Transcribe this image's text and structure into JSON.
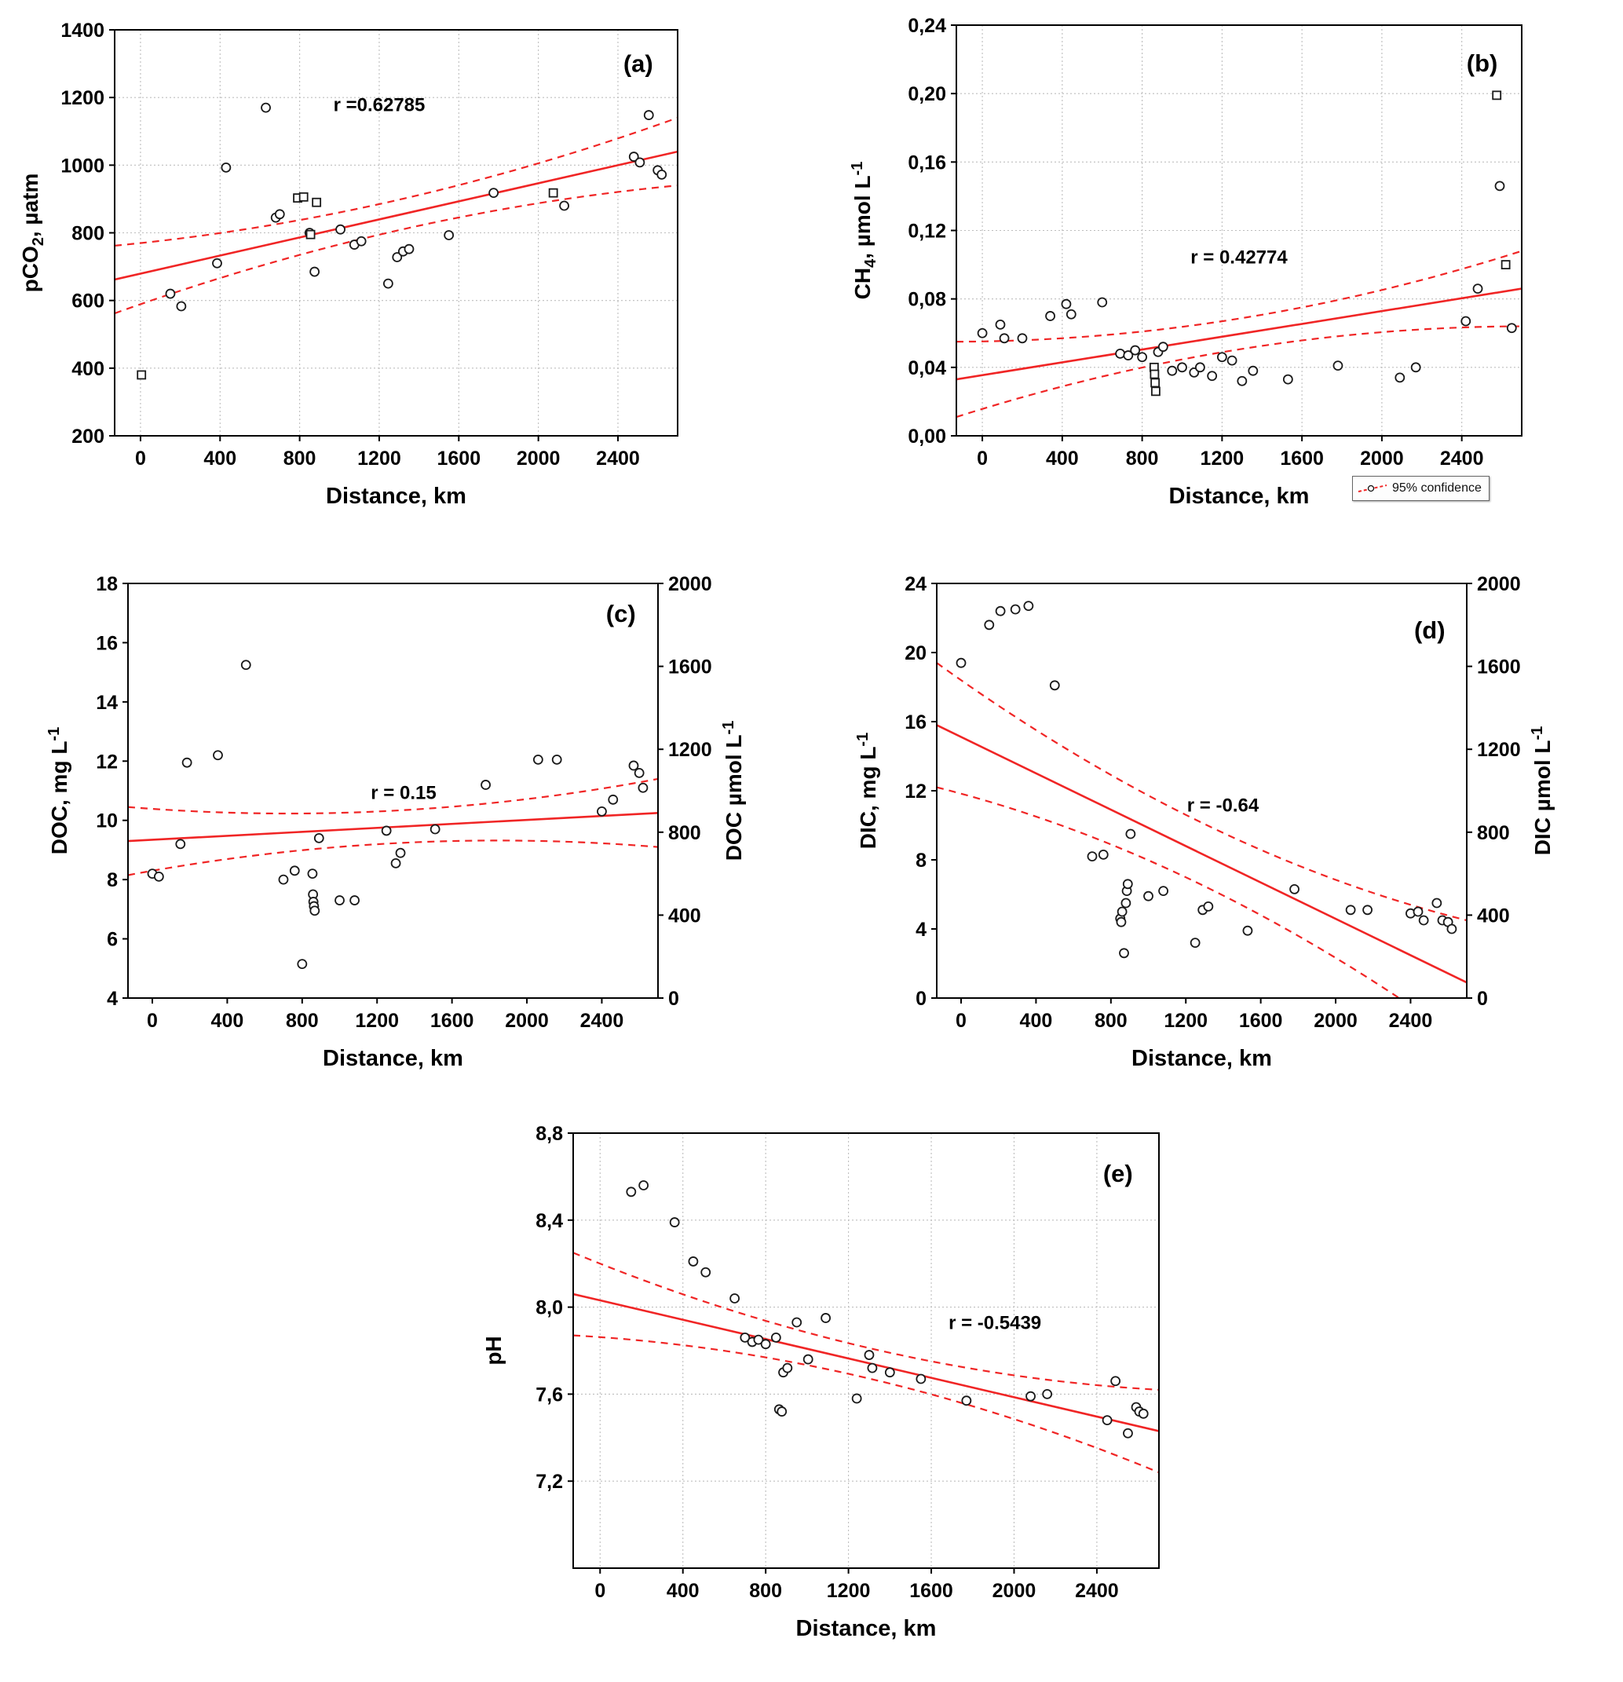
{
  "figure": {
    "description": "Five scatter plots of river water parameters versus distance with linear regressions and 95% confidence bands",
    "panels": [
      "(a)",
      "(b)",
      "(c)",
      "(d)",
      "(e)"
    ]
  },
  "colors": {
    "regression_red": "#f02525",
    "grid": "#bdbdbd",
    "marker": "#1a1a1a",
    "axis": "#000000"
  },
  "chart_data": [
    {
      "id": "a",
      "type": "scatter",
      "panel_label": "(a)",
      "panel_pos": [
        0.93,
        0.08
      ],
      "r_label": "r =0.62785",
      "r_label_pos": [
        0.47,
        0.2
      ],
      "xlabel": "Distance, km",
      "ylabel_segments": [
        {
          "t": "pCO"
        },
        {
          "t": "2",
          "sub": true
        },
        {
          "t": ", µatm"
        }
      ],
      "x_range": [
        -130,
        2700
      ],
      "y_range": [
        200,
        1400
      ],
      "x_ticks": [
        0,
        400,
        800,
        1200,
        1600,
        2000,
        2400
      ],
      "x_tick_labels": [
        "0",
        "400",
        "800",
        "1200",
        "1600",
        "2000",
        "2400"
      ],
      "y_ticks": [
        200,
        400,
        600,
        800,
        1000,
        1200,
        1400
      ],
      "y_tick_labels": [
        "200",
        "400",
        "600",
        "800",
        "1000",
        "1200",
        "1400"
      ],
      "grid": true,
      "points": [
        [
          150,
          620
        ],
        [
          205,
          583
        ],
        [
          385,
          710
        ],
        [
          430,
          993
        ],
        [
          630,
          1170
        ],
        [
          680,
          845
        ],
        [
          700,
          855
        ],
        [
          850,
          800
        ],
        [
          875,
          685
        ],
        [
          1005,
          810
        ],
        [
          1075,
          765
        ],
        [
          1110,
          775
        ],
        [
          1245,
          650
        ],
        [
          1290,
          728
        ],
        [
          1320,
          745
        ],
        [
          1350,
          752
        ],
        [
          1550,
          793
        ],
        [
          1775,
          918
        ],
        [
          2130,
          880
        ],
        [
          2480,
          1025
        ],
        [
          2510,
          1008
        ],
        [
          2555,
          1148
        ],
        [
          2600,
          985
        ],
        [
          2620,
          972
        ]
      ],
      "square_points": [
        [
          5,
          380
        ],
        [
          790,
          903
        ],
        [
          820,
          906
        ],
        [
          855,
          795
        ],
        [
          885,
          890
        ],
        [
          2075,
          918
        ]
      ],
      "regression": {
        "x1": -130,
        "y1": 662,
        "x2": 2700,
        "y2": 1040
      },
      "confidence_band": {
        "mid_offset": 45,
        "end_offset": 100
      }
    },
    {
      "id": "b",
      "type": "scatter",
      "panel_label": "(b)",
      "panel_pos": [
        0.93,
        0.09
      ],
      "r_label": "r = 0.42774",
      "r_label_pos": [
        0.5,
        0.58
      ],
      "xlabel": "Distance, km",
      "ylabel_segments": [
        {
          "t": "CH"
        },
        {
          "t": "4",
          "sub": true
        },
        {
          "t": ", µmol L"
        },
        {
          "t": "-1",
          "sup": true
        }
      ],
      "x_range": [
        -130,
        2700
      ],
      "y_range": [
        0,
        0.24
      ],
      "x_ticks": [
        0,
        400,
        800,
        1200,
        1600,
        2000,
        2400
      ],
      "x_tick_labels": [
        "0",
        "400",
        "800",
        "1200",
        "1600",
        "2000",
        "2400"
      ],
      "y_ticks": [
        0,
        0.04,
        0.08,
        0.12,
        0.16,
        0.2,
        0.24
      ],
      "y_tick_labels": [
        "0,00",
        "0,04",
        "0,08",
        "0,12",
        "0,16",
        "0,20",
        "0,24"
      ],
      "grid": true,
      "points": [
        [
          0,
          0.06
        ],
        [
          90,
          0.065
        ],
        [
          110,
          0.057
        ],
        [
          200,
          0.057
        ],
        [
          340,
          0.07
        ],
        [
          420,
          0.077
        ],
        [
          445,
          0.071
        ],
        [
          600,
          0.078
        ],
        [
          690,
          0.048
        ],
        [
          730,
          0.047
        ],
        [
          765,
          0.05
        ],
        [
          800,
          0.046
        ],
        [
          880,
          0.049
        ],
        [
          905,
          0.052
        ],
        [
          950,
          0.038
        ],
        [
          1000,
          0.04
        ],
        [
          1060,
          0.037
        ],
        [
          1090,
          0.04
        ],
        [
          1150,
          0.035
        ],
        [
          1200,
          0.046
        ],
        [
          1250,
          0.044
        ],
        [
          1300,
          0.032
        ],
        [
          1355,
          0.038
        ],
        [
          1530,
          0.033
        ],
        [
          1780,
          0.041
        ],
        [
          2090,
          0.034
        ],
        [
          2170,
          0.04
        ],
        [
          2420,
          0.067
        ],
        [
          2480,
          0.086
        ],
        [
          2590,
          0.146
        ],
        [
          2650,
          0.063
        ]
      ],
      "square_points": [
        [
          860,
          0.04
        ],
        [
          862,
          0.036
        ],
        [
          865,
          0.031
        ],
        [
          868,
          0.026
        ],
        [
          2575,
          0.199
        ],
        [
          2620,
          0.1
        ]
      ],
      "regression": {
        "x1": -130,
        "y1": 0.033,
        "x2": 2700,
        "y2": 0.086
      },
      "confidence_band": {
        "mid_offset": 0.009,
        "end_offset": 0.022
      },
      "legend": {
        "label": "95% confidence",
        "position": "below-right"
      }
    },
    {
      "id": "c",
      "type": "scatter",
      "panel_label": "(c)",
      "panel_pos": [
        0.93,
        0.07
      ],
      "r_label": "r = 0.15",
      "r_label_pos": [
        0.52,
        0.52
      ],
      "xlabel": "Distance, km",
      "ylabel_segments": [
        {
          "t": "DOC, mg L"
        },
        {
          "t": "-1",
          "sup": true
        }
      ],
      "ylabel_right_segments": [
        {
          "t": "DOC µmol L"
        },
        {
          "t": "-1",
          "sup": true
        }
      ],
      "x_range": [
        -130,
        2700
      ],
      "y_range": [
        4,
        18
      ],
      "x_ticks": [
        0,
        400,
        800,
        1200,
        1600,
        2000,
        2400
      ],
      "x_tick_labels": [
        "0",
        "400",
        "800",
        "1200",
        "1600",
        "2000",
        "2400"
      ],
      "y_ticks": [
        4,
        6,
        8,
        10,
        12,
        14,
        16,
        18
      ],
      "y_tick_labels": [
        "4",
        "6",
        "8",
        "10",
        "12",
        "14",
        "16",
        "18"
      ],
      "y2_range": [
        0,
        2000
      ],
      "y2_ticks": [
        0,
        400,
        800,
        1200,
        1600,
        2000
      ],
      "y2_tick_labels": [
        "0",
        "400",
        "800",
        "1200",
        "1600",
        "2000"
      ],
      "grid": false,
      "points": [
        [
          0,
          8.2
        ],
        [
          35,
          8.1
        ],
        [
          150,
          9.2
        ],
        [
          185,
          11.95
        ],
        [
          350,
          12.2
        ],
        [
          500,
          15.25
        ],
        [
          700,
          8.0
        ],
        [
          760,
          8.3
        ],
        [
          800,
          5.15
        ],
        [
          855,
          8.2
        ],
        [
          858,
          7.5
        ],
        [
          860,
          7.25
        ],
        [
          863,
          7.1
        ],
        [
          867,
          6.95
        ],
        [
          890,
          9.4
        ],
        [
          1000,
          7.3
        ],
        [
          1080,
          7.3
        ],
        [
          1250,
          9.65
        ],
        [
          1300,
          8.55
        ],
        [
          1325,
          8.9
        ],
        [
          1510,
          9.7
        ],
        [
          1780,
          11.2
        ],
        [
          2060,
          12.05
        ],
        [
          2160,
          12.05
        ],
        [
          2400,
          10.3
        ],
        [
          2460,
          10.7
        ],
        [
          2570,
          11.85
        ],
        [
          2600,
          11.6
        ],
        [
          2620,
          11.1
        ]
      ],
      "square_points": [],
      "regression": {
        "x1": -130,
        "y1": 9.3,
        "x2": 2700,
        "y2": 10.25
      },
      "confidence_band": {
        "mid_offset": 0.55,
        "end_offset": 1.15
      }
    },
    {
      "id": "d",
      "type": "scatter",
      "panel_label": "(d)",
      "panel_pos": [
        0.93,
        0.11
      ],
      "r_label": "r = -0.64",
      "r_label_pos": [
        0.54,
        0.55
      ],
      "xlabel": "Distance, km",
      "ylabel_segments": [
        {
          "t": "DIC, mg L"
        },
        {
          "t": "-1",
          "sup": true
        }
      ],
      "ylabel_right_segments": [
        {
          "t": "DIC µmol L"
        },
        {
          "t": "-1",
          "sup": true
        }
      ],
      "x_range": [
        -130,
        2700
      ],
      "y_range": [
        0,
        24
      ],
      "x_ticks": [
        0,
        400,
        800,
        1200,
        1600,
        2000,
        2400
      ],
      "x_tick_labels": [
        "0",
        "400",
        "800",
        "1200",
        "1600",
        "2000",
        "2400"
      ],
      "y_ticks": [
        0,
        4,
        8,
        12,
        16,
        20,
        24
      ],
      "y_tick_labels": [
        "0",
        "4",
        "8",
        "12",
        "16",
        "20",
        "24"
      ],
      "y2_range": [
        0,
        2000
      ],
      "y2_ticks": [
        0,
        400,
        800,
        1200,
        1600,
        2000
      ],
      "y2_tick_labels": [
        "0",
        "400",
        "800",
        "1200",
        "1600",
        "2000"
      ],
      "grid": false,
      "points": [
        [
          0,
          19.4
        ],
        [
          150,
          21.6
        ],
        [
          210,
          22.4
        ],
        [
          290,
          22.5
        ],
        [
          360,
          22.7
        ],
        [
          500,
          18.1
        ],
        [
          700,
          8.2
        ],
        [
          760,
          8.3
        ],
        [
          850,
          4.6
        ],
        [
          855,
          4.4
        ],
        [
          860,
          5.0
        ],
        [
          870,
          2.6
        ],
        [
          880,
          5.5
        ],
        [
          885,
          6.2
        ],
        [
          890,
          6.6
        ],
        [
          905,
          9.5
        ],
        [
          1000,
          5.9
        ],
        [
          1080,
          6.2
        ],
        [
          1250,
          3.2
        ],
        [
          1290,
          5.1
        ],
        [
          1320,
          5.3
        ],
        [
          1530,
          3.9
        ],
        [
          1780,
          6.3
        ],
        [
          2080,
          5.1
        ],
        [
          2170,
          5.1
        ],
        [
          2400,
          4.9
        ],
        [
          2440,
          5.0
        ],
        [
          2470,
          4.5
        ],
        [
          2540,
          5.5
        ],
        [
          2570,
          4.5
        ],
        [
          2600,
          4.4
        ],
        [
          2620,
          4.0
        ]
      ],
      "square_points": [],
      "regression": {
        "x1": -130,
        "y1": 15.8,
        "x2": 2700,
        "y2": 0.9
      },
      "confidence_band": {
        "mid_offset": 1.8,
        "end_offset": 3.6
      }
    },
    {
      "id": "e",
      "type": "scatter",
      "panel_label": "(e)",
      "panel_pos": [
        0.93,
        0.09
      ],
      "r_label": "r = -0.5439",
      "r_label_pos": [
        0.72,
        0.45
      ],
      "xlabel": "Distance, km",
      "ylabel_segments": [
        {
          "t": "pH"
        }
      ],
      "x_range": [
        -130,
        2700
      ],
      "y_range": [
        6.8,
        8.8
      ],
      "x_ticks": [
        0,
        400,
        800,
        1200,
        1600,
        2000,
        2400
      ],
      "x_tick_labels": [
        "0",
        "400",
        "800",
        "1200",
        "1600",
        "2000",
        "2400"
      ],
      "y_ticks": [
        7.2,
        7.6,
        8.0,
        8.4,
        8.8
      ],
      "y_tick_labels": [
        "7,2",
        "7,6",
        "8,0",
        "8,4",
        "8,8"
      ],
      "grid": true,
      "points": [
        [
          150,
          8.53
        ],
        [
          210,
          8.56
        ],
        [
          360,
          8.39
        ],
        [
          450,
          8.21
        ],
        [
          510,
          8.16
        ],
        [
          650,
          8.04
        ],
        [
          700,
          7.86
        ],
        [
          735,
          7.84
        ],
        [
          765,
          7.85
        ],
        [
          800,
          7.83
        ],
        [
          850,
          7.86
        ],
        [
          865,
          7.53
        ],
        [
          878,
          7.52
        ],
        [
          885,
          7.7
        ],
        [
          905,
          7.72
        ],
        [
          950,
          7.93
        ],
        [
          1005,
          7.76
        ],
        [
          1090,
          7.95
        ],
        [
          1240,
          7.58
        ],
        [
          1300,
          7.78
        ],
        [
          1315,
          7.72
        ],
        [
          1400,
          7.7
        ],
        [
          1550,
          7.67
        ],
        [
          1770,
          7.57
        ],
        [
          2080,
          7.59
        ],
        [
          2160,
          7.6
        ],
        [
          2450,
          7.48
        ],
        [
          2490,
          7.66
        ],
        [
          2550,
          7.42
        ],
        [
          2590,
          7.54
        ],
        [
          2605,
          7.52
        ],
        [
          2625,
          7.51
        ]
      ],
      "square_points": [],
      "regression": {
        "x1": -130,
        "y1": 8.06,
        "x2": 2700,
        "y2": 7.43
      },
      "confidence_band": {
        "mid_offset": 0.07,
        "end_offset": 0.19
      }
    }
  ]
}
